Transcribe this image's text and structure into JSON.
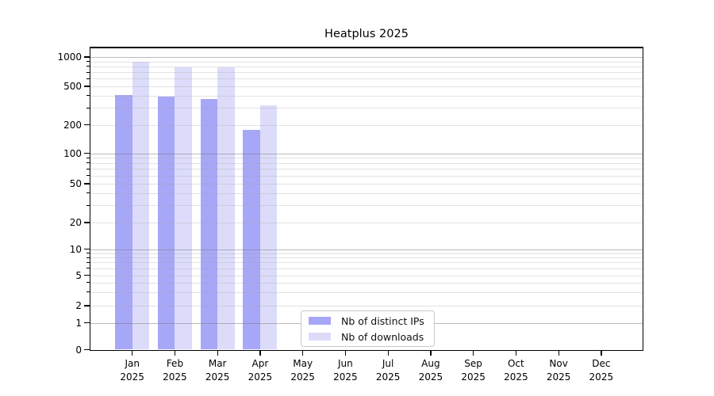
{
  "chart_data": {
    "type": "bar",
    "title": "Heatplus 2025",
    "categories": [
      "Jan 2025",
      "Feb 2025",
      "Mar 2025",
      "Apr 2025",
      "May 2025",
      "Jun 2025",
      "Jul 2025",
      "Aug 2025",
      "Sep 2025",
      "Oct 2025",
      "Nov 2025",
      "Dec 2025"
    ],
    "series": [
      {
        "name": "Nb of distinct IPs",
        "color": "#a7a7f7",
        "values": [
          410,
          390,
          370,
          178,
          0,
          0,
          0,
          0,
          0,
          0,
          0,
          0
        ]
      },
      {
        "name": "Nb of downloads",
        "color": "#dcdcfa",
        "values": [
          900,
          785,
          780,
          318,
          0,
          0,
          0,
          0,
          0,
          0,
          0,
          0
        ]
      }
    ],
    "yscale": "symlog",
    "yticks": [
      0,
      1,
      2,
      5,
      10,
      20,
      50,
      100,
      200,
      500,
      1000
    ],
    "ylim": [
      0,
      1300
    ],
    "xlabel": "",
    "ylabel": "",
    "grid": "horizontal major+minor, drawn over bars",
    "legend_position": "inside lower-center"
  },
  "colors": {
    "bar_distinct_ips": "#a7a7f7",
    "bar_downloads": "#dcdcfa",
    "grid_major": "#c6c6c6",
    "grid_minor": "#ebebeb",
    "axis": "#000000",
    "background": "#ffffff"
  }
}
